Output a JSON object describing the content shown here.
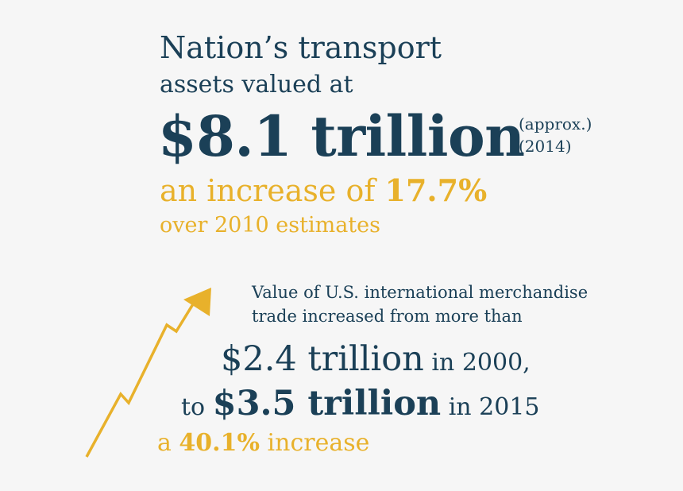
{
  "headline": {
    "line1": "Nation’s transport",
    "line2": "assets valued at",
    "value": "$8.1 trillion",
    "note_approx": "(approx.)",
    "note_year": "(2014)"
  },
  "increase": {
    "prefix": "an increase of ",
    "percent": "17.7%",
    "line2": "over 2010 estimates"
  },
  "trade": {
    "line1": "Value of U.S. international merchandise",
    "line2": "trade increased from more than",
    "from_value": "$2.4 trillion",
    "from_suffix": " in 2000,",
    "to_prefix": "to ",
    "to_value": "$3.5 trillion",
    "to_suffix": " in 2015",
    "change_prefix": "a ",
    "change_percent": "40.1%",
    "change_suffix": " increase"
  },
  "colors": {
    "navy": "#1b4057",
    "gold": "#e8b12b",
    "background": "#f6f6f6"
  },
  "icons": {
    "trend": "upward-zigzag-arrow-icon"
  }
}
